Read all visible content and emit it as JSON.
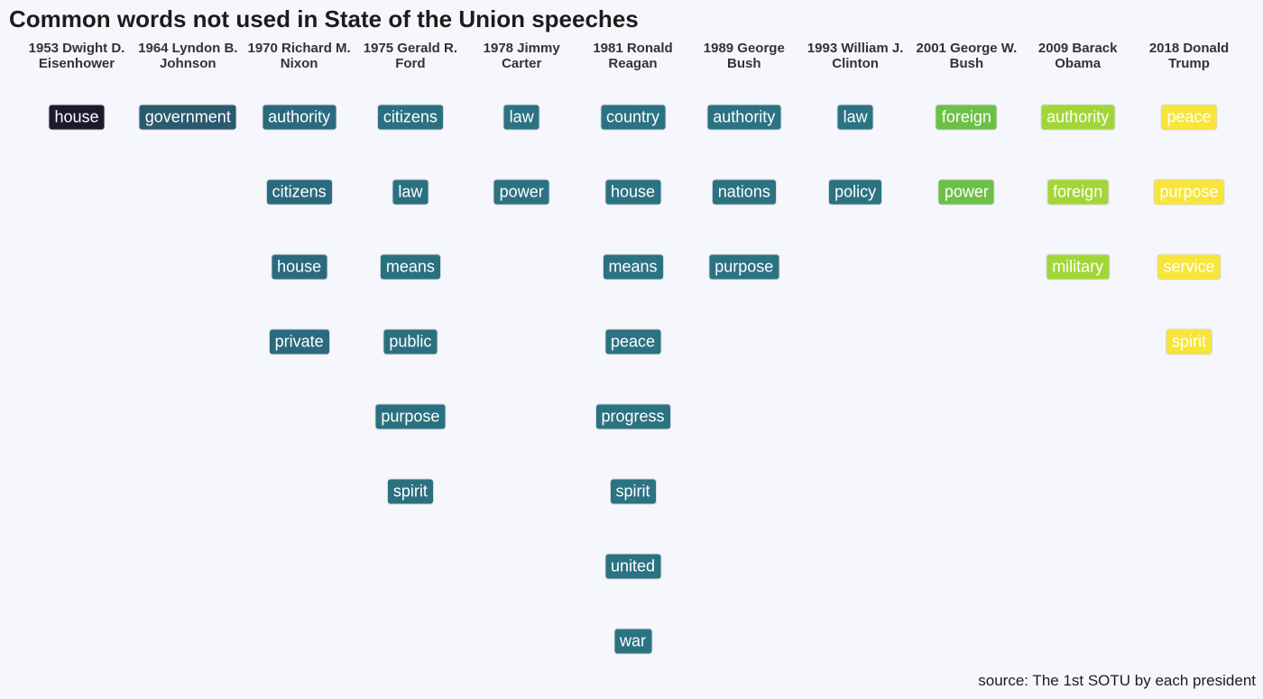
{
  "chart_data": {
    "type": "table",
    "title": "Common words not used in State of the Union speeches",
    "caption": "source: The 1st SOTU by each president",
    "columns": [
      {
        "header": "1953 Dwight D. Eisenhower",
        "color": "#1c1a2c",
        "words": [
          "house"
        ]
      },
      {
        "header": "1964 Lyndon B. Johnson",
        "color": "#2a5a6e",
        "words": [
          "government"
        ]
      },
      {
        "header": "1970 Richard M. Nixon",
        "color": "#2b6a7e",
        "words": [
          "authority",
          "citizens",
          "house",
          "private"
        ]
      },
      {
        "header": "1975 Gerald R. Ford",
        "color": "#2b7080",
        "words": [
          "citizens",
          "law",
          "means",
          "public",
          "purpose",
          "spirit"
        ]
      },
      {
        "header": "1978 Jimmy Carter",
        "color": "#2b7282",
        "words": [
          "law",
          "power"
        ]
      },
      {
        "header": "1981 Ronald Reagan",
        "color": "#2b7282",
        "words": [
          "country",
          "house",
          "means",
          "peace",
          "progress",
          "spirit",
          "united",
          "war"
        ]
      },
      {
        "header": "1989 George Bush",
        "color": "#2b7282",
        "words": [
          "authority",
          "nations",
          "purpose"
        ]
      },
      {
        "header": "1993 William J. Clinton",
        "color": "#2b7282",
        "words": [
          "law",
          "policy"
        ]
      },
      {
        "header": "2001 George W. Bush",
        "color": "#6cc046",
        "words": [
          "foreign",
          "power"
        ]
      },
      {
        "header": "2009 Barack Obama",
        "color": "#a2d636",
        "words": [
          "authority",
          "foreign",
          "military"
        ]
      },
      {
        "header": "2018 Donald Trump",
        "color": "#f7e53a",
        "words": [
          "peace",
          "purpose",
          "service",
          "spirit"
        ]
      }
    ]
  }
}
